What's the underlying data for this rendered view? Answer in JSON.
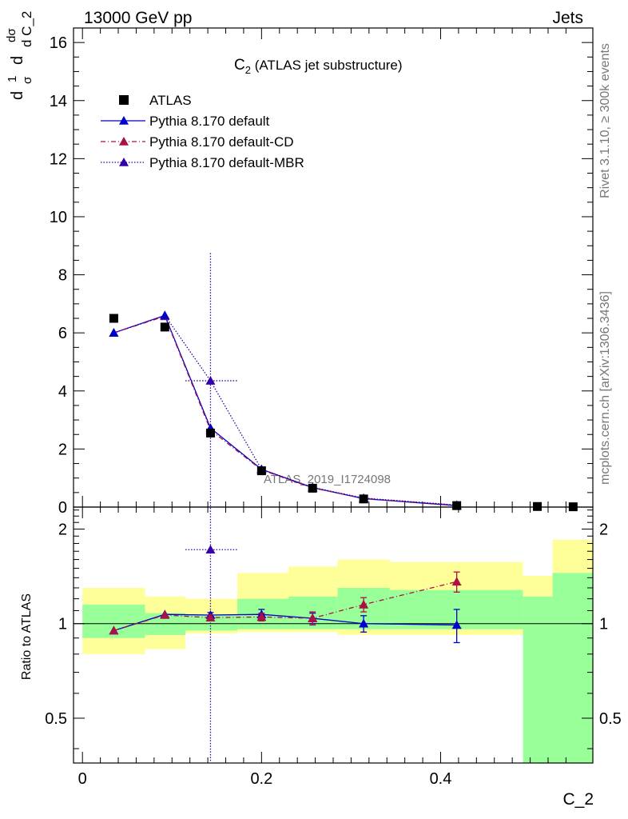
{
  "header": {
    "left": "13000 GeV pp",
    "right": "Jets",
    "side_rivet": "Rivet 3.1.10, ≥ 300k events",
    "side_site": "mcplots.cern.ch [arXiv:1306.3436]",
    "watermark": "ATLAS_2019_I1724098"
  },
  "chart_data": [
    {
      "type": "scatter",
      "title_main": "C",
      "title_sub": "2",
      "title_rest": " (ATLAS jet substructure)",
      "ylabel": {
        "d1": "d",
        "one": "1",
        "sigma": "σ",
        "d2": "d",
        "dsig": "dσ",
        "dc": "d C_2"
      },
      "xlim": [
        -0.01,
        0.57
      ],
      "ylim": [
        0,
        16.5
      ],
      "yticks": [
        0,
        2,
        4,
        6,
        8,
        10,
        12,
        14,
        16
      ],
      "legend": {
        "placement": "top-left",
        "entries": [
          {
            "name": "ATLAS",
            "color": "#000000",
            "marker": "square",
            "line": "none"
          },
          {
            "name": "Pythia 8.170 default",
            "color": "#0000cc",
            "marker": "triangle",
            "line": "solid"
          },
          {
            "name": "Pythia 8.170 default-CD",
            "color": "#aa1144",
            "marker": "triangle",
            "line": "dashdot"
          },
          {
            "name": "Pythia 8.170 default-MBR",
            "color": "#3300aa",
            "marker": "triangle",
            "line": "dotted"
          }
        ]
      },
      "atlas": {
        "x": [
          0.035,
          0.092,
          0.143,
          0.2,
          0.257,
          0.314,
          0.418,
          0.508,
          0.548
        ],
        "y": [
          6.5,
          6.2,
          2.55,
          1.25,
          0.65,
          0.28,
          0.05,
          0.02,
          0.01
        ]
      },
      "series": [
        {
          "name": "Pythia 8.170 default",
          "color": "#0000cc",
          "dash": "",
          "x": [
            0.035,
            0.092,
            0.143,
            0.2,
            0.257,
            0.314,
            0.418
          ],
          "y": [
            6.0,
            6.6,
            2.72,
            1.3,
            0.67,
            0.29,
            0.05
          ]
        },
        {
          "name": "Pythia 8.170 default-CD",
          "color": "#aa1144",
          "dash": "6,3,1,3",
          "x": [
            0.035,
            0.092,
            0.143,
            0.2,
            0.257,
            0.314,
            0.418
          ],
          "y": [
            6.0,
            6.57,
            2.65,
            1.28,
            0.66,
            0.3,
            0.06
          ]
        },
        {
          "name": "Pythia 8.170 default-MBR",
          "color": "#3300aa",
          "dash": "1.5,2",
          "x": [
            0.035,
            0.092,
            0.143,
            0.2,
            0.257,
            0.314,
            0.418
          ],
          "y": [
            6.0,
            6.6,
            4.35,
            1.3,
            0.68,
            0.31,
            0.07
          ],
          "mbr_err": {
            "x": 0.143,
            "y_hi": 8.75,
            "xlo": 0.115,
            "xhi": 0.173
          }
        }
      ]
    },
    {
      "type": "line",
      "ylabel": "Ratio to ATLAS",
      "xlabel": "C_2",
      "xticks": [
        0,
        0.2,
        0.4
      ],
      "ylim": [
        0.36,
        2.35
      ],
      "yticks": [
        0.5,
        1,
        2
      ],
      "bands": [
        {
          "x0": 0.0,
          "x1": 0.07,
          "g": [
            0.9,
            1.15
          ],
          "y": [
            0.8,
            1.3
          ]
        },
        {
          "x0": 0.07,
          "x1": 0.115,
          "g": [
            0.92,
            1.08
          ],
          "y": [
            0.83,
            1.22
          ]
        },
        {
          "x0": 0.115,
          "x1": 0.173,
          "g": [
            0.95,
            1.07
          ],
          "y": [
            0.93,
            1.2
          ]
        },
        {
          "x0": 0.173,
          "x1": 0.23,
          "g": [
            0.96,
            1.2
          ],
          "y": [
            0.94,
            1.45
          ]
        },
        {
          "x0": 0.23,
          "x1": 0.285,
          "g": [
            0.96,
            1.22
          ],
          "y": [
            0.94,
            1.52
          ]
        },
        {
          "x0": 0.285,
          "x1": 0.343,
          "g": [
            0.96,
            1.3
          ],
          "y": [
            0.92,
            1.6
          ]
        },
        {
          "x0": 0.343,
          "x1": 0.492,
          "g": [
            0.96,
            1.28
          ],
          "y": [
            0.92,
            1.57
          ]
        },
        {
          "x0": 0.492,
          "x1": 0.525,
          "g": [
            0.36,
            1.22
          ],
          "y": [
            0.36,
            1.42
          ]
        },
        {
          "x0": 0.525,
          "x1": 0.57,
          "g": [
            0.36,
            1.45
          ],
          "y": [
            0.36,
            1.85
          ]
        }
      ],
      "ratio_series": [
        {
          "name": "Pythia 8.170 default",
          "color": "#0000cc",
          "dash": "",
          "x": [
            0.035,
            0.092,
            0.143,
            0.2,
            0.257,
            0.314,
            0.418
          ],
          "y": [
            0.95,
            1.07,
            1.065,
            1.07,
            1.04,
            1.0,
            0.99
          ],
          "err": [
            0,
            0,
            0.02,
            0.04,
            0.04,
            0.06,
            0.12
          ]
        },
        {
          "name": "Pythia 8.170 default-CD",
          "color": "#aa1144",
          "dash": "6,3,1,3",
          "x": [
            0.035,
            0.092,
            0.143,
            0.2,
            0.257,
            0.314,
            0.418
          ],
          "y": [
            0.95,
            1.065,
            1.045,
            1.05,
            1.04,
            1.15,
            1.36
          ],
          "err": [
            0,
            0,
            0.02,
            0.03,
            0.05,
            0.06,
            0.1
          ]
        },
        {
          "name": "Pythia 8.170 default-MBR",
          "color": "#3300aa",
          "dash": "1.5,2",
          "x": [
            0.143
          ],
          "y": [
            1.72
          ],
          "err": [
            0
          ]
        }
      ]
    }
  ],
  "colors": {
    "green": "#99ff99",
    "yellow": "#ffff99"
  }
}
